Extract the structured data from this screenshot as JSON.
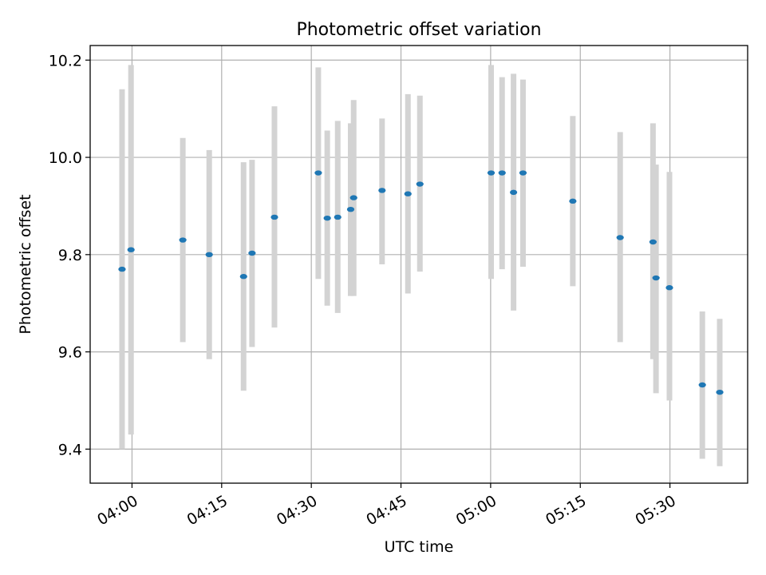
{
  "chart_data": {
    "type": "scatter",
    "title": "Photometric offset variation",
    "xlabel": "UTC time",
    "ylabel": "Photometric offset",
    "x_unit": "UTC time (HH:MM)",
    "xlim": [
      "03:53",
      "05:43"
    ],
    "ylim": [
      9.33,
      10.23
    ],
    "x_ticks": [
      "04:00",
      "04:15",
      "04:30",
      "04:45",
      "05:00",
      "05:15",
      "05:30"
    ],
    "y_ticks": [
      9.4,
      9.6,
      9.8,
      10.0,
      10.2
    ],
    "y_tick_labels": [
      "9.4",
      "9.6",
      "9.8",
      "10.0",
      "10.2"
    ],
    "grid": true,
    "colors": {
      "marker": "#1f77b4",
      "errorbar": "#d3d3d3",
      "grid": "#b0b0b0"
    },
    "points": [
      {
        "x": "03:58:20",
        "y": 9.77,
        "y_low": 9.4,
        "y_high": 10.14
      },
      {
        "x": "03:59:50",
        "y": 9.81,
        "y_low": 9.43,
        "y_high": 10.19
      },
      {
        "x": "04:08:30",
        "y": 9.83,
        "y_low": 9.62,
        "y_high": 10.04
      },
      {
        "x": "04:12:55",
        "y": 9.8,
        "y_low": 9.585,
        "y_high": 10.015
      },
      {
        "x": "04:18:40",
        "y": 9.755,
        "y_low": 9.52,
        "y_high": 9.99
      },
      {
        "x": "04:20:05",
        "y": 9.803,
        "y_low": 9.61,
        "y_high": 9.995
      },
      {
        "x": "04:23:50",
        "y": 9.877,
        "y_low": 9.65,
        "y_high": 10.105
      },
      {
        "x": "04:31:10",
        "y": 9.968,
        "y_low": 9.75,
        "y_high": 10.185
      },
      {
        "x": "04:32:40",
        "y": 9.875,
        "y_low": 9.695,
        "y_high": 10.055
      },
      {
        "x": "04:34:25",
        "y": 9.877,
        "y_low": 9.68,
        "y_high": 10.075
      },
      {
        "x": "04:36:35",
        "y": 9.893,
        "y_low": 9.715,
        "y_high": 10.07
      },
      {
        "x": "04:37:05",
        "y": 9.917,
        "y_low": 9.715,
        "y_high": 10.118
      },
      {
        "x": "04:41:50",
        "y": 9.932,
        "y_low": 9.78,
        "y_high": 10.08
      },
      {
        "x": "04:46:10",
        "y": 9.925,
        "y_low": 9.72,
        "y_high": 10.13
      },
      {
        "x": "04:48:10",
        "y": 9.945,
        "y_low": 9.765,
        "y_high": 10.127
      },
      {
        "x": "05:00:05",
        "y": 9.968,
        "y_low": 9.75,
        "y_high": 10.19
      },
      {
        "x": "05:01:55",
        "y": 9.968,
        "y_low": 9.77,
        "y_high": 10.165
      },
      {
        "x": "05:03:50",
        "y": 9.928,
        "y_low": 9.685,
        "y_high": 10.172
      },
      {
        "x": "05:05:25",
        "y": 9.968,
        "y_low": 9.775,
        "y_high": 10.16
      },
      {
        "x": "05:13:45",
        "y": 9.91,
        "y_low": 9.735,
        "y_high": 10.085
      },
      {
        "x": "05:21:40",
        "y": 9.835,
        "y_low": 9.62,
        "y_high": 10.052
      },
      {
        "x": "05:27:10",
        "y": 9.826,
        "y_low": 9.585,
        "y_high": 10.07
      },
      {
        "x": "05:27:40",
        "y": 9.752,
        "y_low": 9.515,
        "y_high": 9.985
      },
      {
        "x": "05:29:55",
        "y": 9.732,
        "y_low": 9.5,
        "y_high": 9.97
      },
      {
        "x": "05:35:25",
        "y": 9.532,
        "y_low": 9.38,
        "y_high": 9.683
      },
      {
        "x": "05:38:20",
        "y": 9.517,
        "y_low": 9.365,
        "y_high": 9.668
      }
    ]
  }
}
